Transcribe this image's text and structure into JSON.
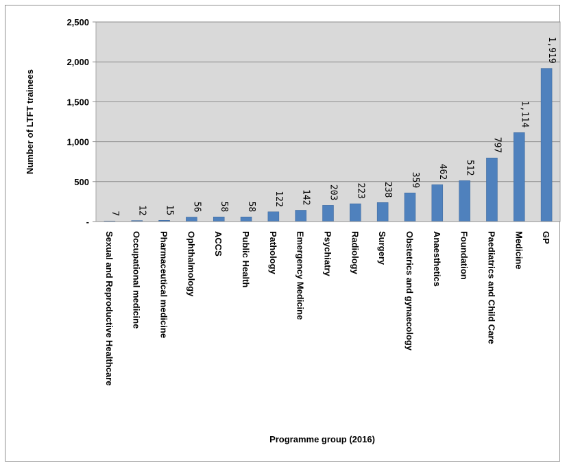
{
  "chart_data": {
    "type": "bar",
    "title": "",
    "xlabel": "Programme group (2016)",
    "ylabel": "Number of LTFT trainees",
    "ylim": [
      0,
      2500
    ],
    "yticks": [
      0,
      500,
      1000,
      1500,
      2000,
      2500
    ],
    "ytick_labels": [
      "-",
      "500",
      "1,000",
      "1,500",
      "2,000",
      "2,500"
    ],
    "grid": true,
    "legend": "none",
    "plot_background": "#d9d9d9",
    "bar_color": "#4f81bd",
    "categories": [
      "Sexual and Reproductive Healthcare",
      "Occupational medicine",
      "Pharmaceutical medicine",
      "Ophthalmology",
      "ACCS",
      "Public Health",
      "Pathology",
      "Emergency Medicine",
      "Psychiatry",
      "Radiology",
      "Surgery",
      "Obstetrics and gynaecology",
      "Anaesthetics",
      "Foundation",
      "Paediatrics and Child Care",
      "Medicine",
      "GP"
    ],
    "values": [
      7,
      12,
      15,
      56,
      58,
      58,
      122,
      142,
      203,
      223,
      238,
      359,
      462,
      512,
      797,
      1114,
      1919
    ],
    "data_labels": [
      "7",
      "12",
      "15",
      "56",
      "58",
      "58",
      "122",
      "142",
      "203",
      "223",
      "238",
      "359",
      "462",
      "512",
      "797",
      "1,114",
      "1,919"
    ]
  }
}
